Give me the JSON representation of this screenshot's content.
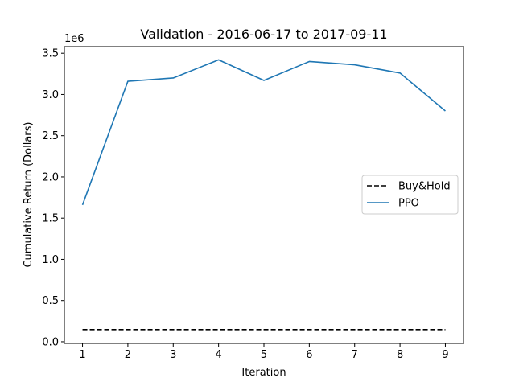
{
  "chart_data": {
    "type": "line",
    "title": "Validation - 2016-06-17 to 2017-09-11",
    "xlabel": "Iteration",
    "ylabel": "Cumulative Return (Dollars)",
    "y_scale_label": "1e6",
    "x": [
      1,
      2,
      3,
      4,
      5,
      6,
      7,
      8,
      9
    ],
    "xlim": [
      0.6,
      9.4
    ],
    "ylim": [
      -0.02,
      3.58
    ],
    "x_ticks": [
      1,
      2,
      3,
      4,
      5,
      6,
      7,
      8,
      9
    ],
    "y_ticks": [
      0.0,
      0.5,
      1.0,
      1.5,
      2.0,
      2.5,
      3.0,
      3.5
    ],
    "y_tick_labels": [
      "0.0",
      "0.5",
      "1.0",
      "1.5",
      "2.0",
      "2.5",
      "3.0",
      "3.5"
    ],
    "grid": false,
    "legend_position": "center-right",
    "series": [
      {
        "name": "Buy&Hold",
        "style": "dashed",
        "color": "#000000",
        "values": [
          0.148,
          0.148,
          0.148,
          0.148,
          0.148,
          0.148,
          0.148,
          0.148,
          0.148
        ]
      },
      {
        "name": "PPO",
        "style": "solid",
        "color": "#1f77b4",
        "values": [
          1.66,
          3.16,
          3.2,
          3.42,
          3.17,
          3.4,
          3.36,
          3.26,
          2.8
        ]
      }
    ]
  }
}
